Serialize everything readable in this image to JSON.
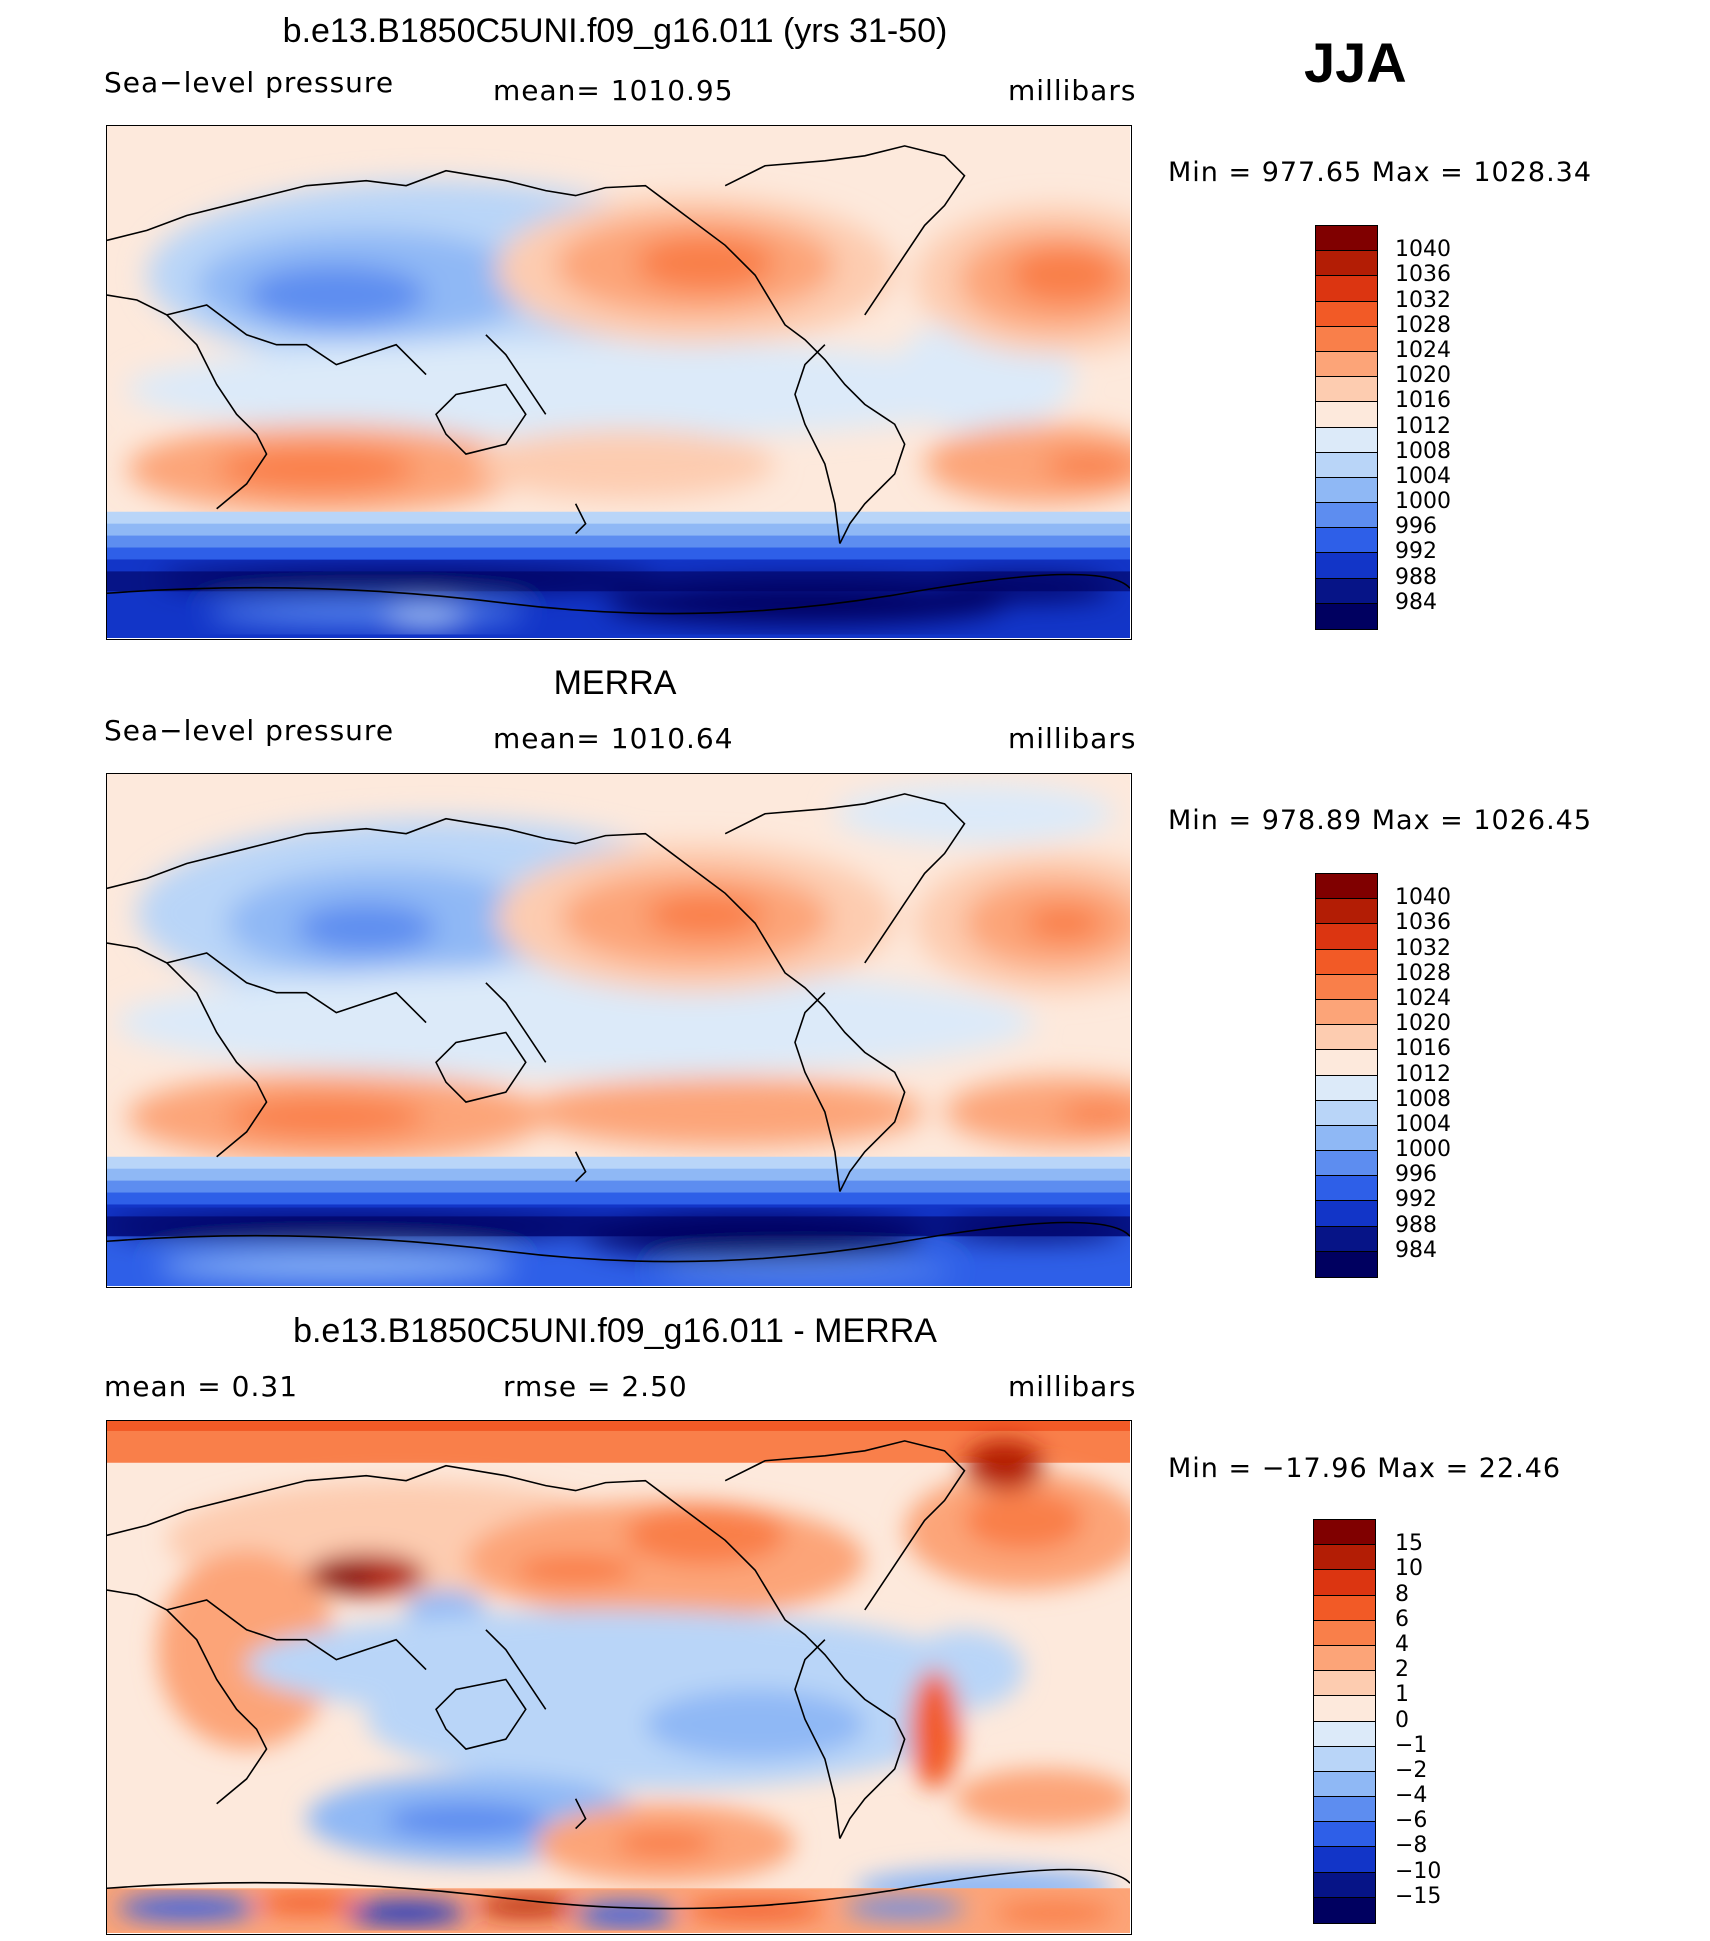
{
  "season": "JJA",
  "panels": [
    {
      "title": "b.e13.B1850C5UNI.f09_g16.011 (yrs 31-50)",
      "left_label": "Sea−level pressure",
      "center_label": "mean=  1010.95",
      "units": "millibars",
      "minmax": "Min  =  977.65  Max  =  1028.34"
    },
    {
      "title": "MERRA",
      "left_label": "Sea−level pressure",
      "center_label": "mean=  1010.64",
      "units": "millibars",
      "minmax": "Min  =  978.89  Max  =  1026.45"
    },
    {
      "title": "b.e13.B1850C5UNI.f09_g16.011 - MERRA",
      "left_label": "mean  =     0.31",
      "center_label": "rmse  =     2.50",
      "units": "millibars",
      "minmax": "Min  =  −17.96  Max  =    22.46"
    }
  ],
  "colorbars": {
    "pressure": {
      "labels": [
        "1040",
        "1036",
        "1032",
        "1028",
        "1024",
        "1020",
        "1016",
        "1012",
        "1008",
        "1004",
        "1000",
        "996",
        "992",
        "988",
        "984"
      ],
      "colors": [
        "#800000",
        "#b31d05",
        "#dc3511",
        "#f25a26",
        "#f97f4a",
        "#fca478",
        "#fdccb0",
        "#fde9dc",
        "#dceaf9",
        "#b9d5f8",
        "#8fb8f5",
        "#5d8df0",
        "#2e5fe8",
        "#1235c8",
        "#061487",
        "#000060"
      ]
    },
    "difference": {
      "labels": [
        "15",
        "10",
        "8",
        "6",
        "4",
        "2",
        "1",
        "0",
        "−1",
        "−2",
        "−4",
        "−6",
        "−8",
        "−10",
        "−15"
      ],
      "colors": [
        "#800000",
        "#b31d05",
        "#dc3511",
        "#f25a26",
        "#f97f4a",
        "#fca478",
        "#fdccb0",
        "#fde9dc",
        "#dceaf9",
        "#b9d5f8",
        "#8fb8f5",
        "#5d8df0",
        "#2e5fe8",
        "#1235c8",
        "#061487",
        "#000060"
      ]
    }
  }
}
